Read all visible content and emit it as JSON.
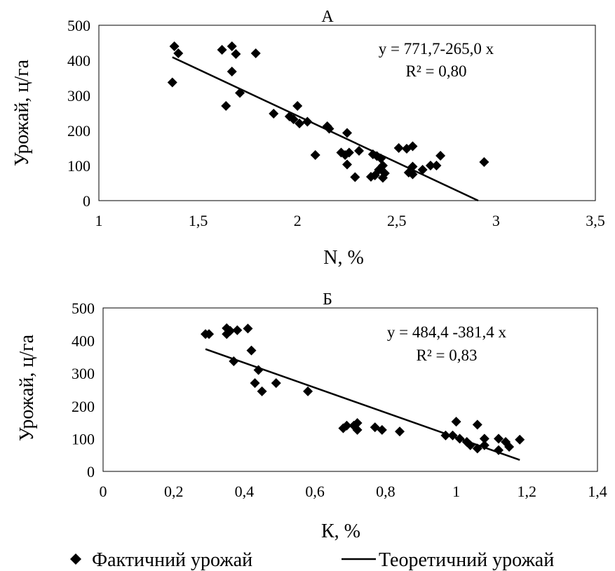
{
  "chart_data": [
    {
      "type": "scatter",
      "panel_label": "А",
      "xlabel": "N, %",
      "ylabel": "Урожай, ц/га",
      "xlim": [
        1,
        3.5
      ],
      "ylim": [
        0,
        500
      ],
      "x_ticks": [
        "1",
        "1,5",
        "2",
        "2,5",
        "3",
        "3,5"
      ],
      "y_ticks": [
        "0",
        "100",
        "200",
        "300",
        "400",
        "500"
      ],
      "grid": false,
      "annotation": [
        "y = 771,7-265,0 x",
        "R² = 0,80"
      ],
      "series": [
        {
          "name": "Фактичний урожай",
          "kind": "points",
          "points": [
            [
              1.38,
              440
            ],
            [
              1.4,
              420
            ],
            [
              1.37,
              337
            ],
            [
              1.62,
              430
            ],
            [
              1.67,
              440
            ],
            [
              1.69,
              418
            ],
            [
              1.79,
              420
            ],
            [
              1.67,
              368
            ],
            [
              1.71,
              307
            ],
            [
              1.64,
              270
            ],
            [
              1.88,
              248
            ],
            [
              1.96,
              240
            ],
            [
              1.98,
              232
            ],
            [
              2.0,
              270
            ],
            [
              2.01,
              220
            ],
            [
              2.05,
              225
            ],
            [
              2.15,
              212
            ],
            [
              2.16,
              205
            ],
            [
              2.09,
              130
            ],
            [
              2.25,
              193
            ],
            [
              2.22,
              137
            ],
            [
              2.24,
              130
            ],
            [
              2.26,
              137
            ],
            [
              2.25,
              103
            ],
            [
              2.31,
              142
            ],
            [
              2.29,
              67
            ],
            [
              2.38,
              132
            ],
            [
              2.4,
              127
            ],
            [
              2.42,
              120
            ],
            [
              2.43,
              100
            ],
            [
              2.41,
              88
            ],
            [
              2.44,
              78
            ],
            [
              2.37,
              68
            ],
            [
              2.39,
              72
            ],
            [
              2.43,
              65
            ],
            [
              2.51,
              150
            ],
            [
              2.55,
              148
            ],
            [
              2.58,
              155
            ],
            [
              2.58,
              97
            ],
            [
              2.56,
              80
            ],
            [
              2.58,
              75
            ],
            [
              2.63,
              88
            ],
            [
              2.67,
              100
            ],
            [
              2.7,
              100
            ],
            [
              2.72,
              128
            ],
            [
              2.94,
              110
            ]
          ]
        },
        {
          "name": "Теоретичний урожай",
          "kind": "line",
          "points": [
            [
              1.37,
              409
            ],
            [
              2.91,
              0
            ]
          ]
        }
      ]
    },
    {
      "type": "scatter",
      "panel_label": "Б",
      "xlabel": "К, %",
      "ylabel": "Урожай, ц/га",
      "xlim": [
        0,
        1.4
      ],
      "ylim": [
        0,
        500
      ],
      "x_ticks": [
        "0",
        "0,2",
        "0,4",
        "0,6",
        "0,8",
        "1",
        "1,2",
        "1,4"
      ],
      "y_ticks": [
        "0",
        "100",
        "200",
        "300",
        "400",
        "500"
      ],
      "grid": false,
      "annotation": [
        "y = 484,4 -381,4 x",
        "R² = 0,83"
      ],
      "series": [
        {
          "name": "Фактичний урожай",
          "kind": "points",
          "points": [
            [
              0.29,
              420
            ],
            [
              0.3,
              420
            ],
            [
              0.35,
              438
            ],
            [
              0.35,
              420
            ],
            [
              0.36,
              430
            ],
            [
              0.38,
              432
            ],
            [
              0.41,
              437
            ],
            [
              0.42,
              370
            ],
            [
              0.37,
              337
            ],
            [
              0.44,
              310
            ],
            [
              0.43,
              270
            ],
            [
              0.45,
              245
            ],
            [
              0.49,
              270
            ],
            [
              0.58,
              245
            ],
            [
              0.68,
              132
            ],
            [
              0.69,
              140
            ],
            [
              0.71,
              140
            ],
            [
              0.72,
              148
            ],
            [
              0.72,
              127
            ],
            [
              0.77,
              135
            ],
            [
              0.79,
              127
            ],
            [
              0.84,
              122
            ],
            [
              0.97,
              110
            ],
            [
              0.99,
              110
            ],
            [
              1.0,
              152
            ],
            [
              1.01,
              100
            ],
            [
              1.03,
              90
            ],
            [
              1.04,
              80
            ],
            [
              1.06,
              143
            ],
            [
              1.06,
              70
            ],
            [
              1.08,
              100
            ],
            [
              1.08,
              80
            ],
            [
              1.12,
              100
            ],
            [
              1.12,
              65
            ],
            [
              1.14,
              90
            ],
            [
              1.15,
              75
            ],
            [
              1.18,
              97
            ]
          ]
        },
        {
          "name": "Теоретичний урожай",
          "kind": "line",
          "points": [
            [
              0.29,
              374
            ],
            [
              1.18,
              35
            ]
          ]
        }
      ]
    }
  ],
  "legend": [
    {
      "label": "Фактичний урожай",
      "symbol": "diamond"
    },
    {
      "label": "Теоретичний урожай",
      "symbol": "line"
    }
  ]
}
